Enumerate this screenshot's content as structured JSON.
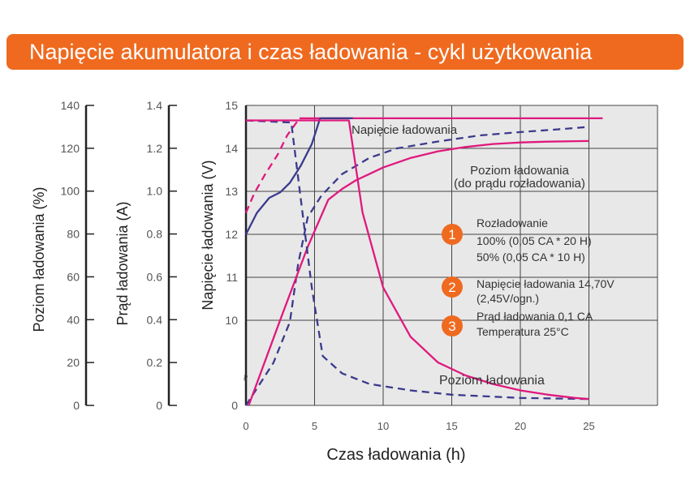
{
  "header": {
    "title": "Napięcie akumulatora i czas ładowania - cykl użytkowania"
  },
  "colors": {
    "accent": "#ef6a1f",
    "pink": "#e0197d",
    "navy": "#3b3a8c",
    "plot_bg": "#e8e8e8",
    "grid": "#444444"
  },
  "chart_data": {
    "type": "line",
    "title": "Napięcie akumulatora i czas ładowania - cykl użytkowania",
    "xlabel": "Czas ładowania (h)",
    "x_ticks": [
      0,
      5,
      10,
      15,
      20,
      25
    ],
    "xlim": [
      0,
      30
    ],
    "grid": true,
    "axes": [
      {
        "label": "Poziom ładowania (%)",
        "ticks": [
          "0",
          "20",
          "40",
          "60",
          "80",
          "100",
          "120",
          "140"
        ],
        "range": [
          0,
          140
        ]
      },
      {
        "label": "Prąd ładowania (A)",
        "ticks": [
          "0",
          "0.2",
          "0.4",
          "0.6",
          "0.8",
          "1.0",
          "1.2",
          "1.4"
        ],
        "range": [
          0,
          1.4
        ]
      },
      {
        "label": "Napięcie ładowania (V)",
        "ticks": [
          "0",
          "10",
          "11",
          "12",
          "13",
          "14",
          "15"
        ],
        "range": [
          0,
          15
        ],
        "break_below": 10
      }
    ],
    "series": [
      {
        "name": "Napięcie ładowania",
        "color": "#e0197d",
        "dash": false,
        "axis": "V",
        "points": [
          [
            3.9,
            14.7
          ],
          [
            26,
            14.7
          ]
        ]
      },
      {
        "name": "",
        "color": "#e0197d",
        "dash": true,
        "axis": "V",
        "points": [
          [
            0,
            12.5
          ],
          [
            0.6,
            12.95
          ],
          [
            1.4,
            13.4
          ],
          [
            2.3,
            13.85
          ],
          [
            3,
            14.3
          ],
          [
            3.9,
            14.7
          ]
        ]
      },
      {
        "name": "",
        "color": "#3b3a8c",
        "dash": false,
        "axis": "V",
        "points": [
          [
            0,
            12
          ],
          [
            0.8,
            12.5
          ],
          [
            1.7,
            12.85
          ],
          [
            2.5,
            12.98
          ],
          [
            3.2,
            13.2
          ],
          [
            4,
            13.6
          ],
          [
            4.8,
            14.1
          ],
          [
            5.4,
            14.7
          ],
          [
            7.8,
            14.7
          ]
        ]
      },
      {
        "name": "",
        "color": "#3b3a8c",
        "dash": true,
        "axis": "V",
        "points": [
          [
            0,
            0
          ],
          [
            2,
            5
          ],
          [
            3.2,
            9.8
          ],
          [
            3.8,
            11.3
          ],
          [
            4.5,
            12.4
          ],
          [
            5.5,
            12.9
          ],
          [
            7,
            13.4
          ],
          [
            9,
            13.78
          ],
          [
            11,
            14.0
          ],
          [
            14,
            14.16
          ],
          [
            17,
            14.3
          ],
          [
            20,
            14.38
          ],
          [
            23,
            14.45
          ],
          [
            25,
            14.5
          ]
        ]
      },
      {
        "name": "Poziom ładowania",
        "sub": "(do prądu rozładowania)",
        "color": "#e0197d",
        "dash": false,
        "axis": "%",
        "points": [
          [
            0.2,
            0
          ],
          [
            2.5,
            40
          ],
          [
            4.5,
            74
          ],
          [
            6,
            96
          ],
          [
            7,
            101
          ],
          [
            8,
            105
          ],
          [
            9,
            108
          ],
          [
            10,
            111
          ],
          [
            12,
            115.5
          ],
          [
            14,
            118.6
          ],
          [
            16,
            120.6
          ],
          [
            18,
            122
          ],
          [
            20,
            122.7
          ],
          [
            22,
            123.1
          ],
          [
            24,
            123.3
          ],
          [
            25,
            123.4
          ]
        ]
      },
      {
        "name": "",
        "color": "#3b3a8c",
        "dash": true,
        "axis": "A",
        "points": [
          [
            0,
            1.33
          ],
          [
            3.3,
            1.32
          ],
          [
            4.8,
            0.55
          ],
          [
            5.6,
            0.23
          ],
          [
            7,
            0.15
          ],
          [
            9,
            0.1
          ],
          [
            12,
            0.07
          ],
          [
            15,
            0.05
          ],
          [
            20,
            0.035
          ],
          [
            25,
            0.03
          ]
        ]
      },
      {
        "name": "Poziom ładowania",
        "color": "#e0197d",
        "dash": false,
        "axis": "A",
        "points": [
          [
            0,
            1.33
          ],
          [
            7.5,
            1.33
          ],
          [
            7.6,
            1.29
          ],
          [
            8.5,
            0.9
          ],
          [
            10,
            0.55
          ],
          [
            12,
            0.32
          ],
          [
            14,
            0.2
          ],
          [
            16,
            0.14
          ],
          [
            18,
            0.1
          ],
          [
            20,
            0.07
          ],
          [
            22,
            0.05
          ],
          [
            24,
            0.035
          ],
          [
            25,
            0.03
          ]
        ]
      }
    ],
    "annotations": [
      {
        "num": "1",
        "lines": [
          "Rozładowanie",
          "100% (0,05 CA * 20 H)",
          "50% (0,05 CA * 10 H)"
        ]
      },
      {
        "num": "2",
        "lines": [
          "Napięcie ładowania 14,70V",
          "(2,45V/ogn.)"
        ]
      },
      {
        "num": "3",
        "lines": [
          "Prąd ładowania 0,1 CA",
          "Temperatura 25°C"
        ]
      }
    ],
    "break_symbol": "≈"
  }
}
